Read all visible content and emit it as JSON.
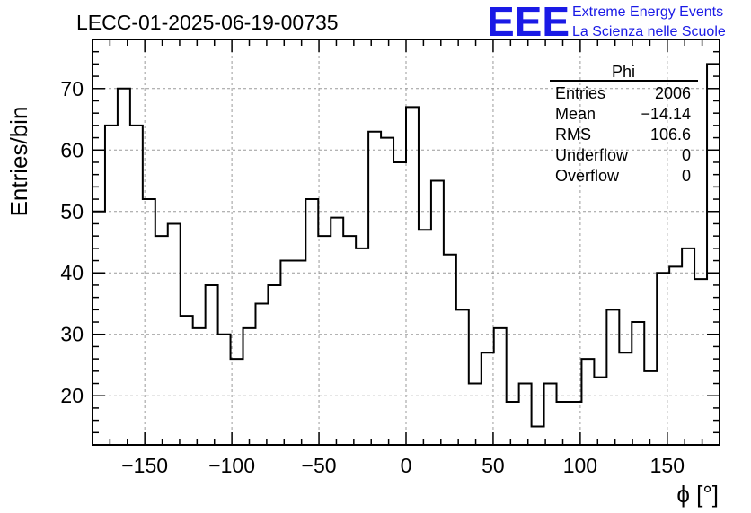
{
  "chart_data": {
    "type": "histogram",
    "title": "LECC-01-2025-06-19-00735",
    "xlabel": "ϕ [°]",
    "ylabel": "Entries/bin",
    "xlim": [
      -180,
      180
    ],
    "ylim": [
      12,
      78
    ],
    "xticks": [
      -150,
      -100,
      -50,
      0,
      50,
      100,
      150
    ],
    "xtick_labels": [
      "−150",
      "−100",
      "−50",
      "0",
      "50",
      "100",
      "150"
    ],
    "yticks": [
      20,
      30,
      40,
      50,
      60,
      70
    ],
    "yticks_labels": [
      "20",
      "30",
      "40",
      "50",
      "60",
      "70"
    ],
    "grid": true,
    "bin_width": 7.2,
    "bin_edges_start": -180,
    "values": [
      50,
      64,
      70,
      64,
      52,
      46,
      48,
      33,
      31,
      38,
      30,
      26,
      31,
      35,
      38,
      42,
      42,
      52,
      46,
      49,
      46,
      44,
      63,
      62,
      58,
      67,
      47,
      55,
      43,
      34,
      22,
      27,
      31,
      19,
      22,
      15,
      22,
      19,
      19,
      26,
      23,
      34,
      27,
      32,
      24,
      40,
      41,
      44,
      39,
      74
    ],
    "series_name": "Phi",
    "stats": {
      "title": "Phi",
      "rows": [
        {
          "label": "Entries",
          "value": "2006"
        },
        {
          "label": "Mean",
          "value": "−14.14"
        },
        {
          "label": "RMS",
          "value": "106.6"
        },
        {
          "label": "Underflow",
          "value": "0"
        },
        {
          "label": "Overflow",
          "value": "0"
        }
      ]
    }
  },
  "logo": {
    "mark": "EEE",
    "line1": "Extreme Energy Events",
    "line2": "La Scienza nelle Scuole",
    "color": "#1a1ae6"
  }
}
